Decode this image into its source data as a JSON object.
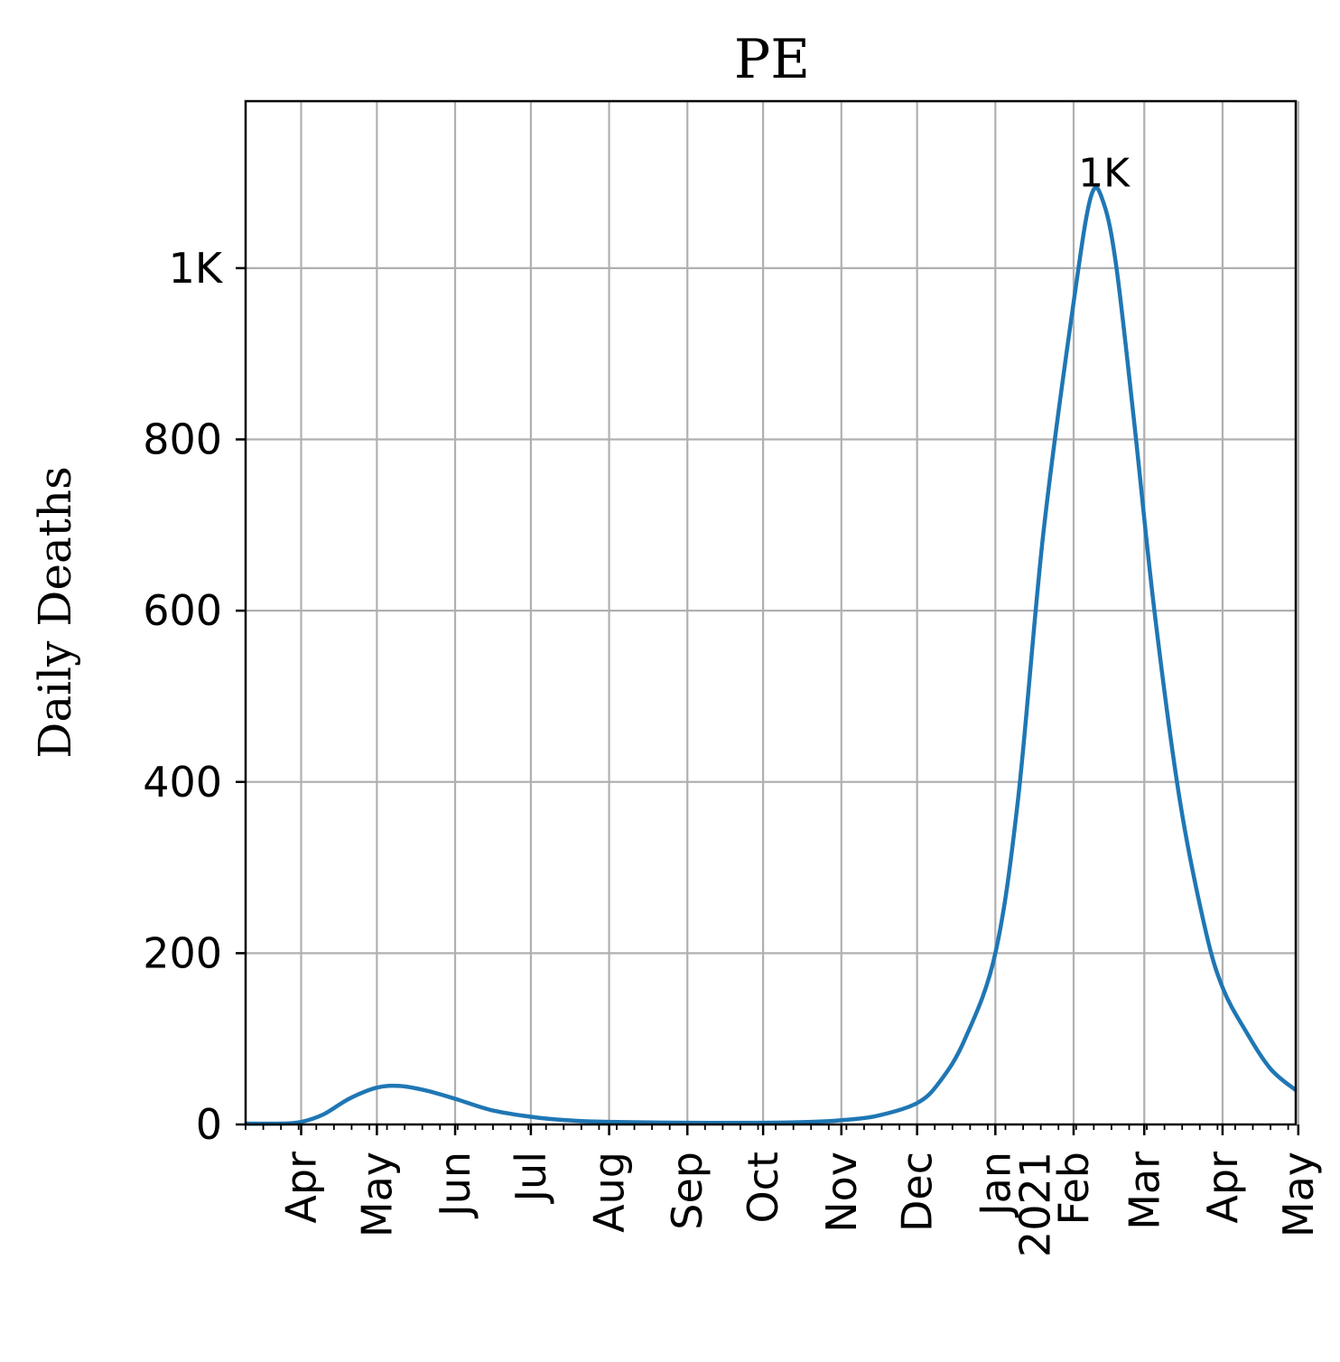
{
  "chart_data": {
    "type": "line",
    "title": "PE",
    "ylabel": "Daily Deaths",
    "xlabel": "",
    "ylim": [
      0,
      1195
    ],
    "yticks": [
      {
        "value": 0,
        "label": "0"
      },
      {
        "value": 200,
        "label": "200"
      },
      {
        "value": 400,
        "label": "400"
      },
      {
        "value": 600,
        "label": "600"
      },
      {
        "value": 800,
        "label": "800"
      },
      {
        "value": 1000,
        "label": "1K"
      }
    ],
    "xlim": [
      "2020-03-10",
      "2021-04-30"
    ],
    "xticks": [
      {
        "date": "2020-04-01",
        "label": "Apr"
      },
      {
        "date": "2020-05-01",
        "label": "May"
      },
      {
        "date": "2020-06-01",
        "label": "Jun"
      },
      {
        "date": "2020-07-01",
        "label": "Jul"
      },
      {
        "date": "2020-08-01",
        "label": "Aug"
      },
      {
        "date": "2020-09-01",
        "label": "Sep"
      },
      {
        "date": "2020-10-01",
        "label": "Oct"
      },
      {
        "date": "2020-11-01",
        "label": "Nov"
      },
      {
        "date": "2020-12-01",
        "label": "Dec"
      },
      {
        "date": "2021-01-01",
        "label": "Jan\n2021"
      },
      {
        "date": "2021-02-01",
        "label": "Feb"
      },
      {
        "date": "2021-03-01",
        "label": "Mar"
      },
      {
        "date": "2021-04-01",
        "label": "Apr"
      },
      {
        "date": "2021-05-01",
        "label": "May"
      }
    ],
    "grid": true,
    "series": [
      {
        "color": "#1f77b4",
        "x": [
          "2020-03-10",
          "2020-03-24",
          "2020-04-01",
          "2020-04-10",
          "2020-04-20",
          "2020-05-01",
          "2020-05-10",
          "2020-05-20",
          "2020-06-01",
          "2020-06-15",
          "2020-07-01",
          "2020-07-15",
          "2020-08-01",
          "2020-09-01",
          "2020-10-01",
          "2020-10-20",
          "2020-11-01",
          "2020-11-15",
          "2020-12-01",
          "2020-12-10",
          "2020-12-20",
          "2021-01-01",
          "2021-01-10",
          "2021-01-20",
          "2021-02-01",
          "2021-02-08",
          "2021-02-13",
          "2021-02-18",
          "2021-02-25",
          "2021-03-05",
          "2021-03-15",
          "2021-03-25",
          "2021-04-01",
          "2021-04-10",
          "2021-04-20",
          "2021-04-30"
        ],
        "y": [
          1,
          1,
          3,
          12,
          30,
          43,
          45,
          40,
          30,
          17,
          9,
          5,
          3,
          2,
          2,
          3,
          5,
          10,
          25,
          50,
          100,
          200,
          380,
          690,
          960,
          1085,
          1075,
          1000,
          820,
          600,
          380,
          230,
          160,
          110,
          65,
          40
        ]
      }
    ],
    "annotations": [
      {
        "text": "1K",
        "date": "2021-02-13",
        "value": 1085
      }
    ]
  }
}
